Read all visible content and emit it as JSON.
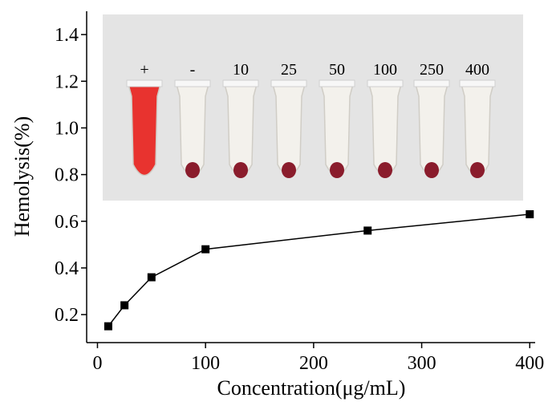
{
  "chart_data": {
    "type": "line",
    "x_label": "Concentration(μg/mL)",
    "y_label": "Hemolysis(%)",
    "x": [
      10,
      25,
      50,
      100,
      250,
      400
    ],
    "series": [
      {
        "values": [
          0.15,
          0.24,
          0.36,
          0.48,
          0.56,
          0.63
        ],
        "color": "#000000"
      }
    ],
    "xlim": [
      -10,
      405
    ],
    "ylim": [
      0.08,
      1.5
    ],
    "xticks": [
      0,
      100,
      200,
      300,
      400
    ],
    "yticks": [
      0.2,
      0.4,
      0.6,
      0.8,
      {
        "value": 1,
        "label": "1.0"
      },
      1.2,
      1.4
    ],
    "inset": {
      "labels": [
        "+",
        "-",
        "10",
        "25",
        "50",
        "100",
        "250",
        "400"
      ]
    }
  }
}
